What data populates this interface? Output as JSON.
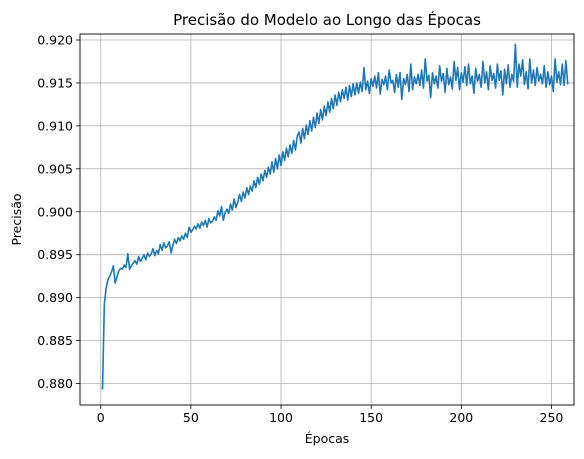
{
  "chart_data": {
    "type": "line",
    "title": "Precisão do Modelo ao Longo das Épocas",
    "xlabel": "Épocas",
    "ylabel": "Precisão",
    "xlim": [
      -11.5,
      262.5
    ],
    "ylim": [
      0.8775,
      0.9207
    ],
    "xticks": [
      0,
      50,
      100,
      150,
      200,
      250
    ],
    "yticks": [
      0.88,
      0.885,
      0.89,
      0.895,
      0.9,
      0.905,
      0.91,
      0.915,
      0.92
    ],
    "xtick_labels": [
      "0",
      "50",
      "100",
      "150",
      "200",
      "250"
    ],
    "ytick_labels": [
      "0.880",
      "0.885",
      "0.890",
      "0.895",
      "0.900",
      "0.905",
      "0.910",
      "0.915",
      "0.920"
    ],
    "grid": true,
    "colors": {
      "line": "#1f77b4"
    },
    "series": [
      {
        "values": [
          0.8794,
          0.8893,
          0.8911,
          0.8921,
          0.8925,
          0.893,
          0.8937,
          0.8917,
          0.8924,
          0.8931,
          0.8934,
          0.8933,
          0.8938,
          0.8935,
          0.8951,
          0.8933,
          0.8937,
          0.894,
          0.8943,
          0.8939,
          0.8948,
          0.8942,
          0.8946,
          0.895,
          0.8944,
          0.8952,
          0.8948,
          0.8951,
          0.8957,
          0.8949,
          0.8955,
          0.8951,
          0.8962,
          0.8955,
          0.8964,
          0.8958,
          0.896,
          0.8965,
          0.8952,
          0.8961,
          0.8968,
          0.8963,
          0.897,
          0.8966,
          0.8972,
          0.8968,
          0.8975,
          0.897,
          0.8982,
          0.8976,
          0.8979,
          0.8983,
          0.898,
          0.8986,
          0.8981,
          0.8988,
          0.8984,
          0.899,
          0.8982,
          0.8992,
          0.8987,
          0.8989,
          0.8994,
          0.899,
          0.9001,
          0.8995,
          0.9006,
          0.899,
          0.8999,
          0.9003,
          0.8998,
          0.9009,
          0.9002,
          0.9015,
          0.9005,
          0.9011,
          0.902,
          0.9012,
          0.9023,
          0.9016,
          0.9028,
          0.902,
          0.903,
          0.9024,
          0.9036,
          0.9028,
          0.904,
          0.9032,
          0.9044,
          0.9036,
          0.9048,
          0.904,
          0.9052,
          0.9044,
          0.9058,
          0.9046,
          0.9062,
          0.905,
          0.9066,
          0.9054,
          0.907,
          0.906,
          0.9074,
          0.9064,
          0.9078,
          0.9068,
          0.9083,
          0.9072,
          0.9088,
          0.9093,
          0.908,
          0.9097,
          0.9085,
          0.9101,
          0.909,
          0.9106,
          0.9094,
          0.911,
          0.9098,
          0.9115,
          0.9103,
          0.9119,
          0.9107,
          0.9123,
          0.9112,
          0.9128,
          0.9116,
          0.9132,
          0.912,
          0.9136,
          0.9124,
          0.9139,
          0.9128,
          0.9142,
          0.9132,
          0.9145,
          0.913,
          0.9147,
          0.9134,
          0.9149,
          0.9136,
          0.915,
          0.9138,
          0.9151,
          0.914,
          0.9168,
          0.9142,
          0.9152,
          0.9138,
          0.9155,
          0.9146,
          0.9158,
          0.9144,
          0.9162,
          0.9137,
          0.9154,
          0.9148,
          0.9158,
          0.9142,
          0.9165,
          0.915,
          0.9153,
          0.9139,
          0.916,
          0.9145,
          0.9162,
          0.9131,
          0.9155,
          0.9148,
          0.916,
          0.914,
          0.9172,
          0.9142,
          0.9157,
          0.9149,
          0.916,
          0.9147,
          0.9165,
          0.9144,
          0.9178,
          0.9152,
          0.9159,
          0.9133,
          0.9162,
          0.9149,
          0.9158,
          0.9144,
          0.917,
          0.9152,
          0.9161,
          0.9139,
          0.9167,
          0.9148,
          0.9157,
          0.9143,
          0.9175,
          0.9153,
          0.9168,
          0.9142,
          0.9162,
          0.9151,
          0.9169,
          0.9147,
          0.9172,
          0.9149,
          0.9158,
          0.9138,
          0.9167,
          0.9152,
          0.916,
          0.9145,
          0.9175,
          0.915,
          0.9163,
          0.9142,
          0.917,
          0.9153,
          0.9161,
          0.9144,
          0.9172,
          0.9153,
          0.9164,
          0.9136,
          0.9166,
          0.9149,
          0.9171,
          0.9145,
          0.916,
          0.9152,
          0.9195,
          0.9145,
          0.9172,
          0.9158,
          0.9177,
          0.9148,
          0.9163,
          0.9143,
          0.9178,
          0.915,
          0.9165,
          0.9147,
          0.9168,
          0.9152,
          0.916,
          0.9149,
          0.917,
          0.9145,
          0.9163,
          0.9148,
          0.9158,
          0.914,
          0.9178,
          0.9151,
          0.9163,
          0.9148,
          0.9172,
          0.9147,
          0.9176,
          0.9149
        ]
      }
    ]
  }
}
